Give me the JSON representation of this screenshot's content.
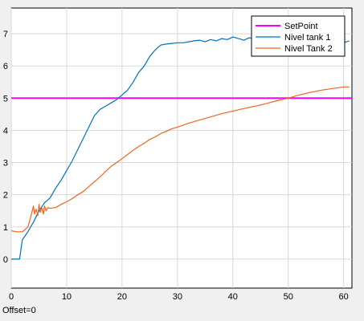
{
  "chart_data": {
    "type": "line",
    "title": "",
    "xlabel": "",
    "ylabel": "",
    "xlim": [
      0,
      61.5
    ],
    "ylim": [
      -0.9,
      7.8
    ],
    "xticks": [
      0,
      10,
      20,
      30,
      40,
      50,
      60
    ],
    "yticks": [
      0,
      1,
      2,
      3,
      4,
      5,
      6,
      7
    ],
    "grid": true,
    "legend_position": "top-right",
    "series": [
      {
        "name": "SetPoint",
        "color": "#ff00ff",
        "x": [
          0,
          61.5
        ],
        "y": [
          5,
          5
        ]
      },
      {
        "name": "Nivel tank 1",
        "color": "#0072bd",
        "x": [
          0,
          1.5,
          2,
          3,
          4,
          5,
          6,
          7,
          8,
          9,
          10,
          11,
          12,
          13,
          14,
          15,
          16,
          17,
          18,
          19,
          20,
          21,
          22,
          23,
          24,
          25,
          26,
          27,
          28,
          29,
          30,
          31,
          32,
          33,
          34,
          35,
          36,
          37,
          38,
          39,
          40,
          41,
          42,
          43,
          44,
          45,
          46,
          47,
          48,
          49,
          50,
          51,
          52,
          53,
          54,
          55,
          56,
          57,
          58,
          59,
          60,
          61
        ],
        "y": [
          0,
          0,
          0.6,
          0.85,
          1.15,
          1.5,
          1.75,
          1.9,
          2.2,
          2.45,
          2.75,
          3.05,
          3.4,
          3.75,
          4.1,
          4.45,
          4.65,
          4.75,
          4.85,
          4.95,
          5.1,
          5.25,
          5.5,
          5.8,
          6.0,
          6.3,
          6.5,
          6.65,
          6.68,
          6.7,
          6.72,
          6.72,
          6.75,
          6.78,
          6.8,
          6.75,
          6.82,
          6.78,
          6.85,
          6.82,
          6.9,
          6.85,
          6.8,
          6.88,
          6.82,
          6.9,
          6.85,
          6.78,
          6.9,
          6.85,
          6.75,
          6.85,
          6.8,
          6.78,
          6.82,
          6.8,
          6.72,
          6.85,
          6.8,
          6.7,
          6.72,
          6.78
        ]
      },
      {
        "name": "Nivel Tank 2",
        "color": "#f0661e",
        "x": [
          0,
          1,
          2,
          3,
          3.5,
          4,
          4.2,
          4.5,
          4.8,
          5,
          5.2,
          5.5,
          5.8,
          6,
          6.3,
          6.6,
          7,
          8,
          9,
          10,
          11,
          12,
          13,
          14,
          15,
          16,
          17,
          18,
          19,
          20,
          21,
          22,
          23,
          24,
          25,
          26,
          27,
          28,
          29,
          30,
          32,
          34,
          36,
          38,
          40,
          42,
          44,
          46,
          48,
          50,
          52,
          54,
          56,
          58,
          60,
          61
        ],
        "y": [
          0.88,
          0.85,
          0.85,
          1.0,
          1.3,
          1.65,
          1.4,
          1.55,
          1.35,
          1.7,
          1.45,
          1.6,
          1.4,
          1.65,
          1.5,
          1.6,
          1.58,
          1.6,
          1.7,
          1.78,
          1.88,
          2.0,
          2.1,
          2.25,
          2.4,
          2.55,
          2.72,
          2.88,
          3.0,
          3.12,
          3.25,
          3.38,
          3.5,
          3.6,
          3.72,
          3.8,
          3.9,
          3.97,
          4.05,
          4.1,
          4.22,
          4.32,
          4.42,
          4.52,
          4.6,
          4.68,
          4.75,
          4.83,
          4.92,
          5.0,
          5.1,
          5.18,
          5.25,
          5.3,
          5.35,
          5.35
        ]
      }
    ]
  },
  "footer": {
    "offset_label": "Offset=0"
  }
}
